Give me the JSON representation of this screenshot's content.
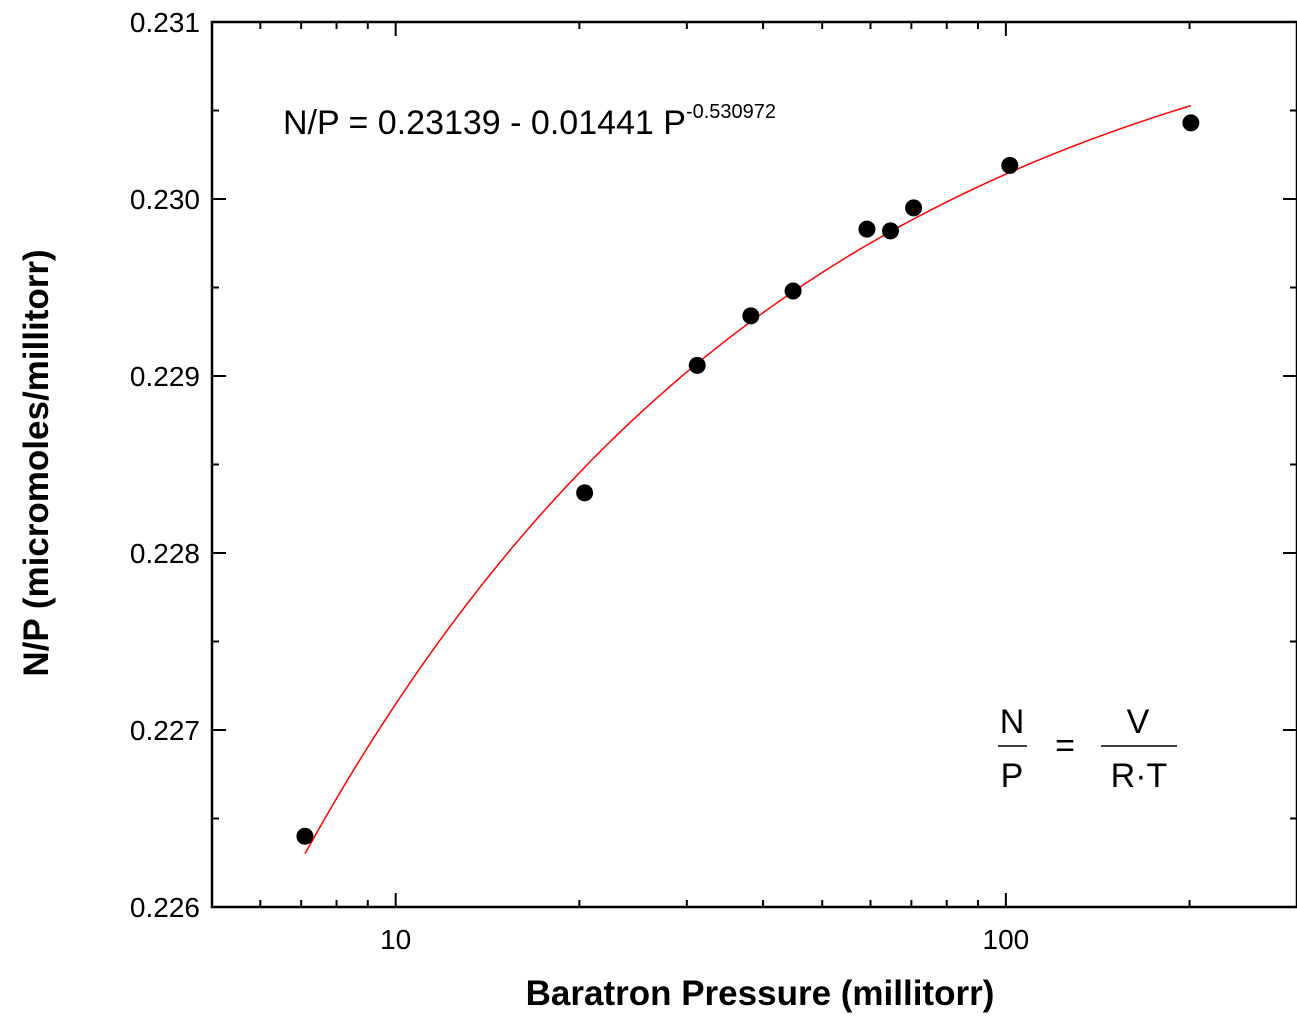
{
  "chart_data": {
    "type": "scatter",
    "xlabel": "Baratron Pressure (millitorr)",
    "ylabel": "N/P (micromoles/millitorr)",
    "xscale": "log",
    "xlim": [
      5,
      300
    ],
    "ylim": [
      0.226,
      0.231
    ],
    "x_ticks": [
      10,
      100
    ],
    "x_tick_labels": [
      "10",
      "100"
    ],
    "y_ticks": [
      0.226,
      0.227,
      0.228,
      0.229,
      0.23,
      0.231
    ],
    "y_tick_labels": [
      "0.226",
      "0.227",
      "0.228",
      "0.229",
      "0.230",
      "0.231"
    ],
    "grid": false,
    "series": [
      {
        "type": "scatter",
        "marker": "filled-circle",
        "color": "#000000",
        "x": [
          7.1,
          20.4,
          31.2,
          38.2,
          44.8,
          59.2,
          64.7,
          70.6,
          101.5,
          201.0
        ],
        "y": [
          0.2264,
          0.22834,
          0.22906,
          0.22934,
          0.22948,
          0.22983,
          0.22982,
          0.22995,
          0.23019,
          0.23043
        ]
      },
      {
        "type": "line",
        "color": "#ff0000",
        "fit": {
          "a": 0.23139,
          "b": 0.01441,
          "c": 0.530972,
          "x_from": 7.1,
          "x_to": 201.0
        }
      }
    ],
    "annotations": {
      "equation_main": "N/P = 0.23139 - 0.01441 P",
      "equation_exponent": "-0.530972",
      "frac_left_num": "N",
      "frac_left_den": "P",
      "equals": "=",
      "frac_right_num": "V",
      "frac_right_den": "R·T"
    }
  }
}
